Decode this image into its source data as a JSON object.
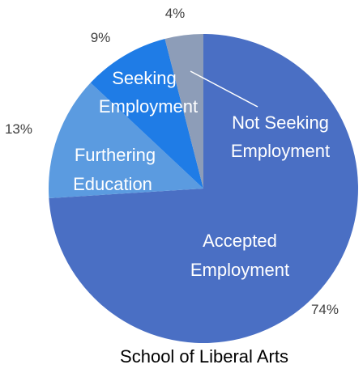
{
  "chart_data": {
    "type": "pie",
    "title": "School of Liberal Arts",
    "slices": [
      {
        "label": "Accepted Employment",
        "value": 74,
        "percent_label": "74%",
        "color": "#4a6fc4"
      },
      {
        "label": "Furthering Education",
        "value": 13,
        "percent_label": "13%",
        "color": "#5b9be0"
      },
      {
        "label": "Seeking Employment",
        "value": 9,
        "percent_label": "9%",
        "color": "#1f7ce6"
      },
      {
        "label": "Not Seeking Employment",
        "value": 4,
        "percent_label": "4%",
        "color": "#8d9db8"
      }
    ]
  }
}
